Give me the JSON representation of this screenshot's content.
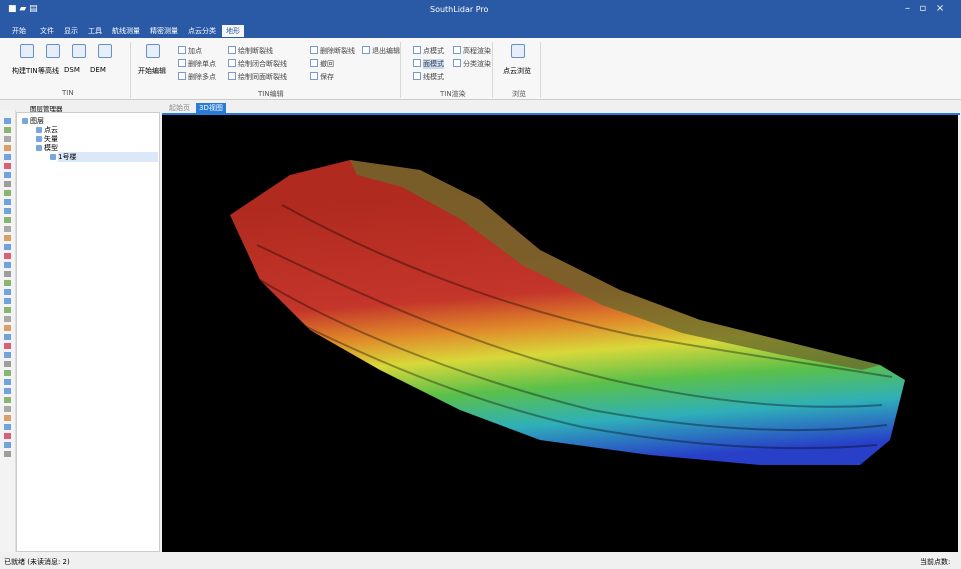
{
  "title_bar": {
    "title": "SouthLidar Pro"
  },
  "menu_tabs": [
    "开始",
    "文件",
    "显示",
    "工具",
    "航线测量",
    "精密测量",
    "点云分类",
    "地形"
  ],
  "ribbon": {
    "groups": [
      {
        "label": "TIN",
        "buttons": [
          "构建TIN",
          "等高线",
          "DSM",
          "DEM"
        ]
      },
      {
        "label": "TIN编辑",
        "buttons": [
          "开始编辑",
          "加点",
          "删除单点",
          "删除多点",
          "绘制断裂线",
          "绘制闭合断裂线",
          "绘制同面断裂线",
          "删除断裂线",
          "撤回",
          "保存",
          "退出编辑"
        ]
      },
      {
        "label": "TIN渲染",
        "buttons": [
          "点模式",
          "面模式",
          "线模式",
          "高程渲染",
          "分类渲染"
        ]
      },
      {
        "label": "浏览",
        "buttons": [
          "点云浏览"
        ]
      }
    ]
  },
  "layer_panel": {
    "title": "图层管理器",
    "tree": [
      "图层",
      "点云",
      "矢量",
      "模型",
      "1号楼"
    ]
  },
  "doc_tabs": [
    "起始页",
    "3D视图"
  ],
  "status_bar": {
    "left": "已就绪 (未读消息: 2)",
    "right": "当前点数:"
  }
}
